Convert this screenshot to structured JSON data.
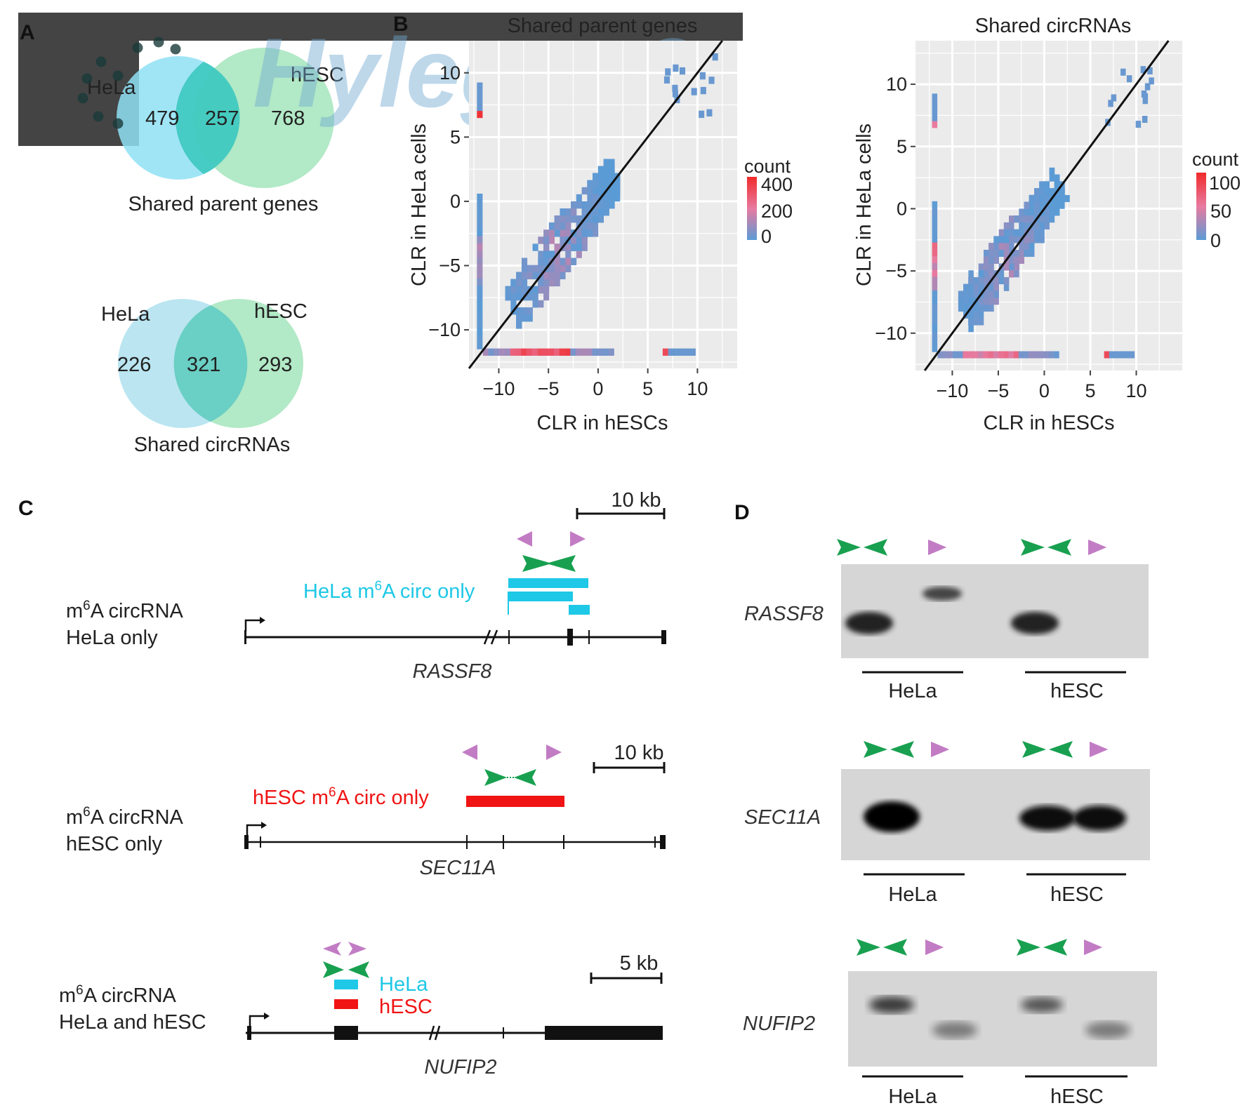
{
  "panels": {
    "a": "A",
    "b": "B",
    "c": "C",
    "d": "D"
  },
  "watermark": "Hylegen®",
  "venn_genes": {
    "title": "Shared parent genes",
    "left_label": "HeLa",
    "right_label": "hESC",
    "left_only": "479",
    "shared": "257",
    "right_only": "768"
  },
  "venn_circ": {
    "title": "Shared circRNAs",
    "left_label": "HeLa",
    "right_label": "hESC",
    "left_only": "226",
    "shared": "321",
    "right_only": "293"
  },
  "chart_data": [
    {
      "type": "heatmap",
      "title": "Shared parent genes",
      "xlabel": "CLR in hESCs",
      "ylabel": "CLR in HeLa cells",
      "xlim": [
        -13,
        14
      ],
      "ylim": [
        -13,
        12.5
      ],
      "xticks": [
        "−10",
        "−5",
        "0",
        "5",
        "10"
      ],
      "yticks": [
        "−10",
        "−5",
        "0",
        "5",
        "10"
      ],
      "legend": {
        "title": "count",
        "labels": [
          "400",
          "200",
          "0"
        ],
        "max": 400
      },
      "grid": true,
      "diagonal": "y = x"
    },
    {
      "type": "heatmap",
      "title": "Shared circRNAs",
      "xlabel": "CLR in hESCs",
      "ylabel": "CLR in HeLa cells",
      "xlim": [
        -14,
        15
      ],
      "ylim": [
        -13,
        13.5
      ],
      "xticks": [
        "−10",
        "−5",
        "0",
        "5",
        "10"
      ],
      "yticks": [
        "−10",
        "−5",
        "0",
        "5",
        "10"
      ],
      "legend": {
        "title": "count",
        "labels": [
          "100",
          "50",
          "0"
        ],
        "max": 100
      },
      "grid": true,
      "diagonal": "y = x"
    }
  ],
  "gene_models": [
    {
      "label_line1": "m",
      "label_sup": "6",
      "label_line1b": "A circRNA",
      "label_line2": "HeLa only",
      "gene": "RASSF8",
      "scale": "10 kb",
      "circ_label": "HeLa m",
      "circ_sup": "6",
      "circ_label_b": "A circ only",
      "circ_color": "#1ec8e6"
    },
    {
      "label_line1": "m",
      "label_sup": "6",
      "label_line1b": "A circRNA",
      "label_line2": "hESC only",
      "gene": "SEC11A",
      "scale": "10 kb",
      "circ_label": "hESC m",
      "circ_sup": "6",
      "circ_label_b": "A circ only",
      "circ_color": "#f01414"
    },
    {
      "label_line1": "m",
      "label_sup": "6",
      "label_line1b": "A circRNA",
      "label_line2": "HeLa and hESC",
      "gene": "NUFIP2",
      "scale": "5 kb",
      "circ_hela": "HeLa",
      "circ_hesc": "hESC"
    }
  ],
  "gels": [
    {
      "gene": "RASSF8",
      "lane_left": "HeLa",
      "lane_right": "hESC"
    },
    {
      "gene": "SEC11A",
      "lane_left": "HeLa",
      "lane_right": "hESC"
    },
    {
      "gene": "NUFIP2",
      "lane_left": "HeLa",
      "lane_right": "hESC"
    }
  ],
  "colors": {
    "hela_venn": "#8fe0f5",
    "hesc_venn": "#9fe4b8",
    "convergent_primer": "#18a050",
    "divergent_primer": "#c27cc4",
    "heat_low": "#5b9bd5",
    "heat_mid": "#e87aa0",
    "heat_high": "#f02a2a",
    "plot_bg": "#ebebeb"
  }
}
